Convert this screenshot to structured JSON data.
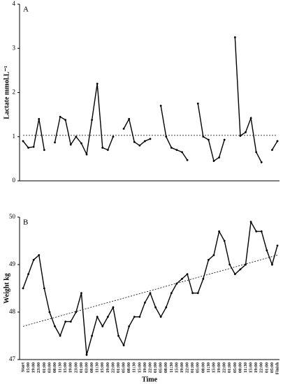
{
  "chart_data": [
    {
      "type": "line",
      "panel_label": "A",
      "y_label": "Lactate mmol.L⁻¹",
      "color": "#000000",
      "ylim": [
        0,
        4
      ],
      "yticks": [
        0,
        1,
        2,
        3,
        4
      ],
      "values": [
        0.9,
        0.75,
        0.77,
        1.4,
        0.7,
        null,
        0.87,
        1.45,
        1.38,
        0.82,
        1.0,
        0.85,
        0.6,
        1.38,
        2.2,
        0.75,
        0.7,
        1.0,
        null,
        1.18,
        1.4,
        0.88,
        0.8,
        0.9,
        0.95,
        null,
        1.7,
        1.0,
        0.75,
        0.7,
        0.65,
        0.47,
        null,
        1.75,
        1.0,
        0.93,
        0.45,
        0.53,
        0.93,
        null,
        3.25,
        1.02,
        1.1,
        1.42,
        0.65,
        0.42,
        null,
        0.7,
        0.9
      ],
      "trend": [
        1.03,
        1.03
      ]
    },
    {
      "type": "line",
      "panel_label": "B",
      "y_label": "Weight kg",
      "x_label": "Time",
      "color": "#000000",
      "ylim": [
        47,
        50
      ],
      "yticks": [
        47,
        48,
        49,
        50
      ],
      "categories": [
        "Start",
        "15:00",
        "19:00",
        "23:00",
        "01:00",
        "03:00",
        "08:00",
        "11:30",
        "15:00",
        "19:00",
        "23:00",
        "01:00",
        "03:00",
        "08:00",
        "11:30",
        "15:00",
        "19:00",
        "22:00",
        "01:00",
        "05:00",
        "08:00",
        "11:30",
        "15:00",
        "19:00",
        "22:00",
        "01:00",
        "05:00",
        "08:00",
        "11:30",
        "15:00",
        "19:00",
        "22:00",
        "01:00",
        "05:00",
        "08:00",
        "11:30",
        "15:00",
        "19:00",
        "22:00",
        "01:00",
        "05:00",
        "08:00",
        "11:30",
        "15:00",
        "19:00",
        "22:00",
        "01:00",
        "05:00",
        "Finish"
      ],
      "values": [
        48.5,
        48.8,
        49.1,
        49.2,
        48.5,
        48.0,
        47.7,
        47.5,
        47.8,
        47.8,
        48.0,
        48.4,
        47.1,
        47.5,
        47.9,
        47.7,
        47.9,
        48.1,
        47.5,
        47.3,
        47.7,
        47.9,
        47.9,
        48.2,
        48.4,
        48.1,
        47.9,
        48.1,
        48.4,
        48.6,
        48.7,
        48.8,
        48.4,
        48.4,
        48.7,
        49.1,
        49.2,
        49.7,
        49.5,
        49.0,
        48.8,
        48.9,
        49.0,
        49.9,
        49.7,
        49.7,
        49.3,
        49.0,
        49.4
      ],
      "trend": [
        47.7,
        49.2
      ]
    }
  ]
}
